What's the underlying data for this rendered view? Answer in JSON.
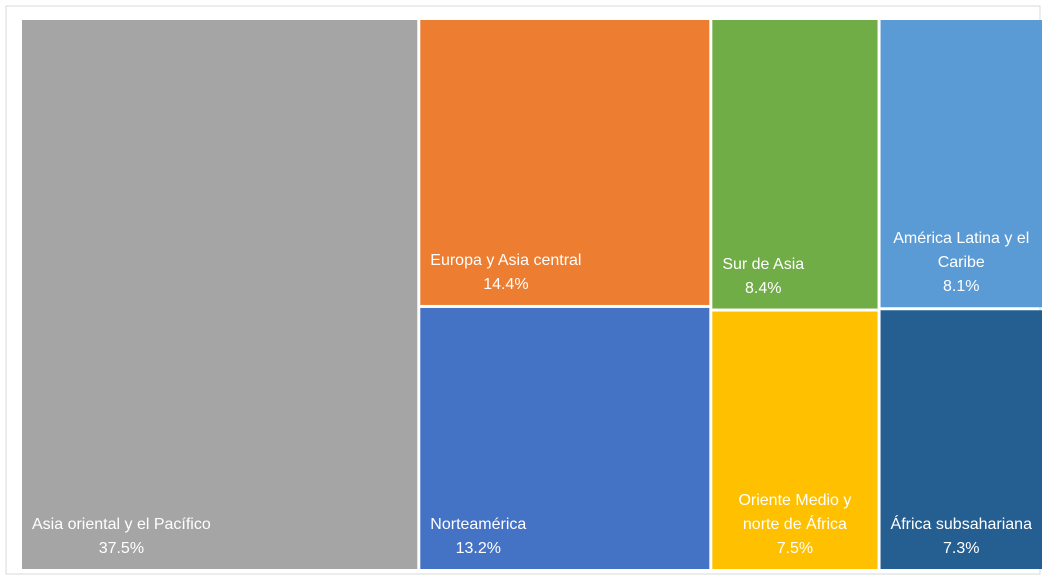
{
  "chart_data": {
    "type": "treemap",
    "categories": [
      "Asia oriental y el Pacífico",
      "Europa y Asia central",
      "Norteamérica",
      "Sur de Asia",
      "Oriente Medio y norte de África",
      "América Latina y el Caribe",
      "África subsahariana"
    ],
    "values": [
      37.5,
      14.4,
      13.2,
      8.4,
      7.5,
      8.1,
      7.3
    ],
    "value_labels": [
      "37.5%",
      "14.4%",
      "13.2%",
      "8.4%",
      "7.5%",
      "8.1%",
      "7.3%"
    ],
    "colors": [
      "#a5a5a5",
      "#ed7d31",
      "#4472c4",
      "#70ad47",
      "#ffc000",
      "#5b9bd5",
      "#255e91"
    ]
  }
}
